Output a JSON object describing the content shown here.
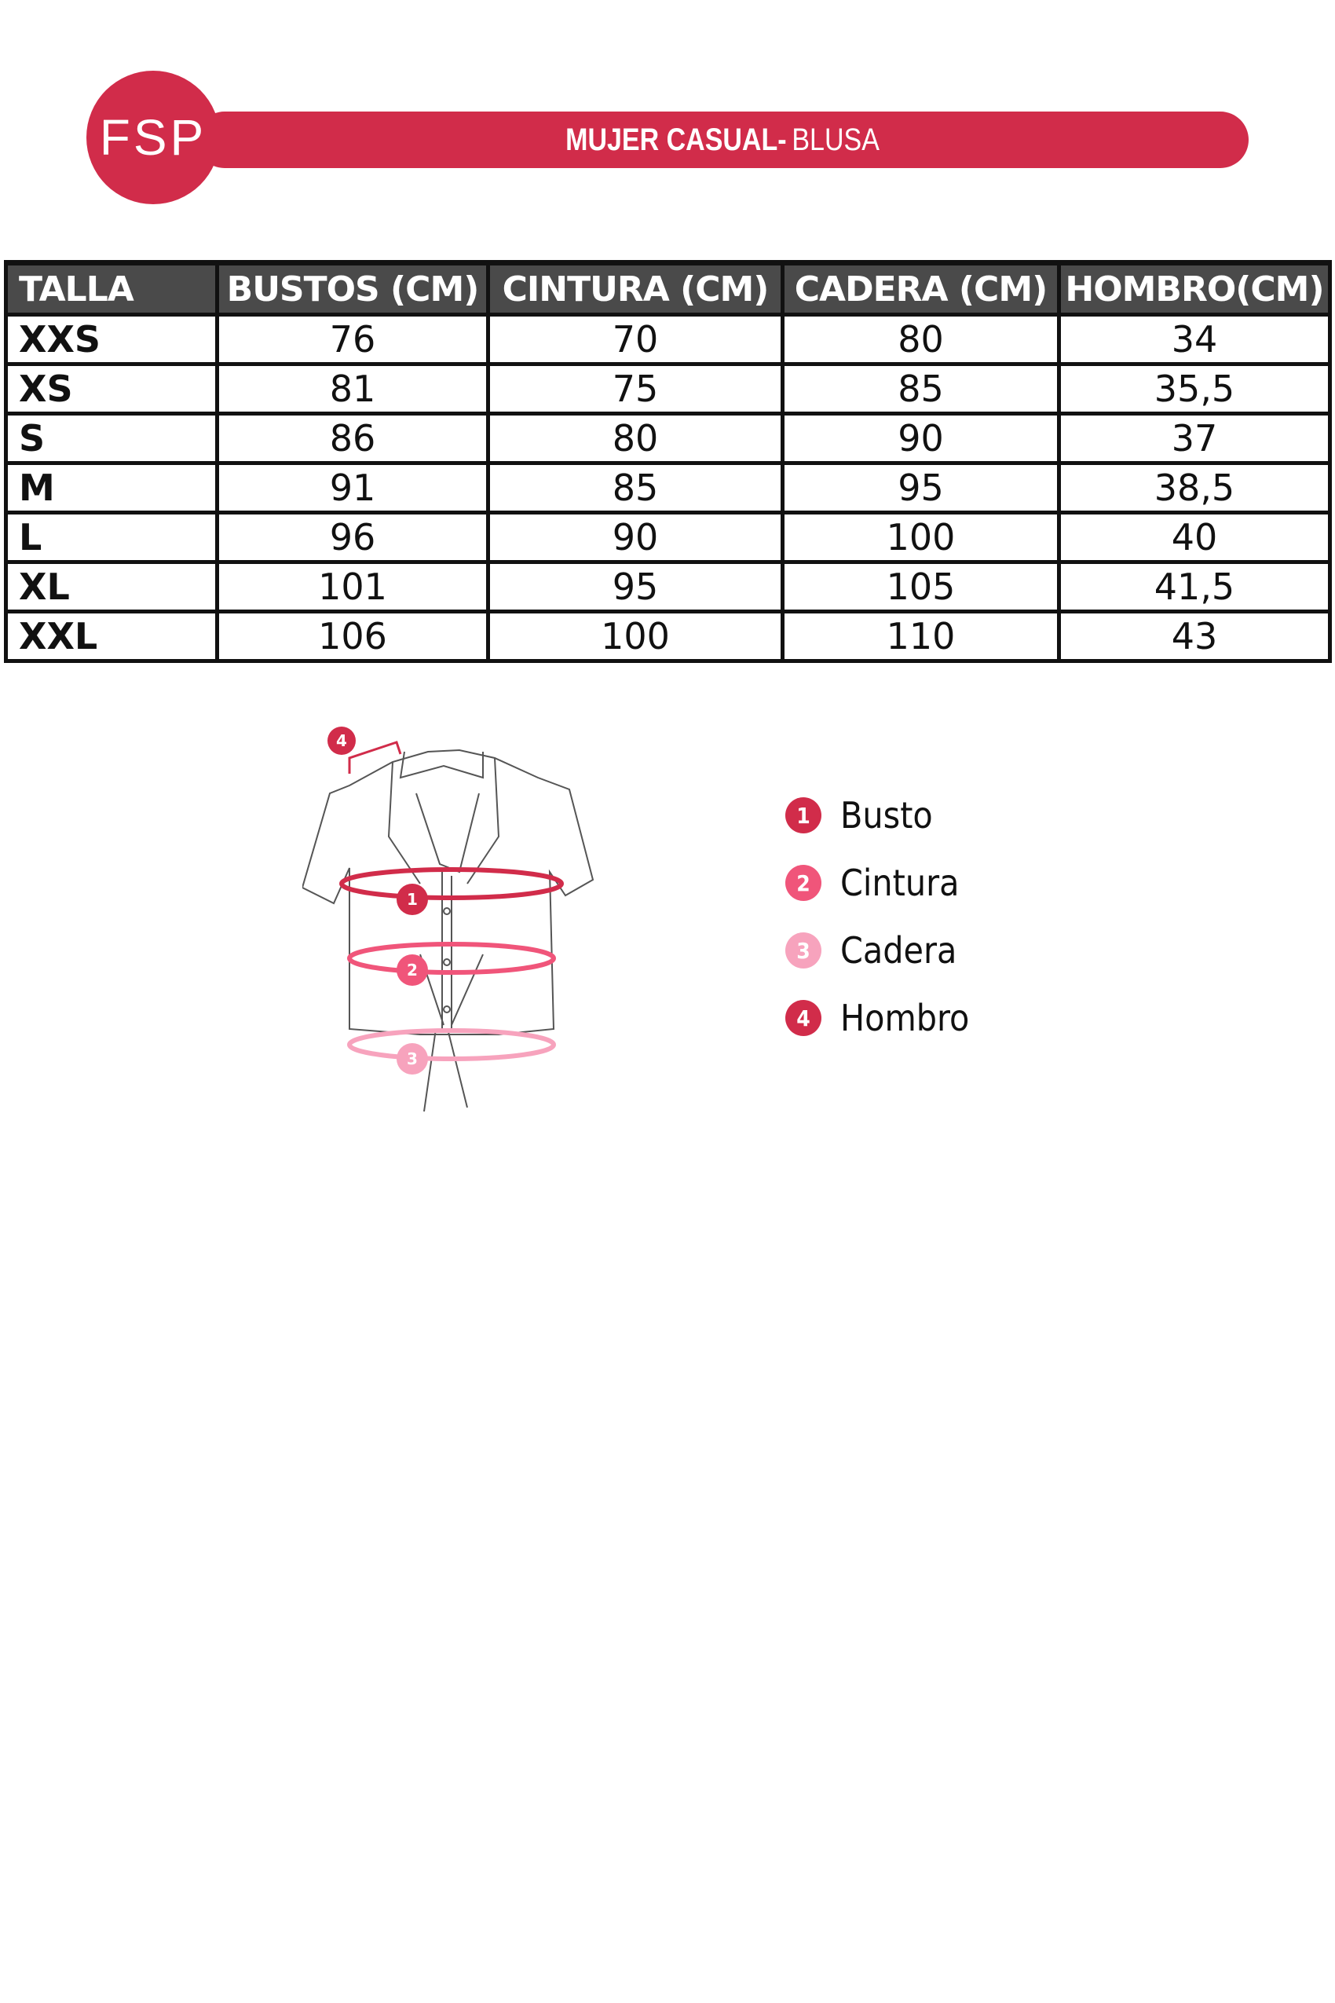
{
  "header": {
    "logo": "FSP",
    "title_bold": "MUJER CASUAL-",
    "title_light": "BLUSA",
    "color": "#d12c4a"
  },
  "table": {
    "columns": [
      "TALLA",
      "BUSTOS (CM)",
      "CINTURA (CM)",
      "CADERA (CM)",
      "HOMBRO(CM)"
    ],
    "rows": [
      [
        "XXS",
        "76",
        "70",
        "80",
        "34"
      ],
      [
        "XS",
        "81",
        "75",
        "85",
        "35,5"
      ],
      [
        "S",
        "86",
        "80",
        "90",
        "37"
      ],
      [
        "M",
        "91",
        "85",
        "95",
        "38,5"
      ],
      [
        "L",
        "96",
        "90",
        "100",
        "40"
      ],
      [
        "XL",
        "101",
        "95",
        "105",
        "41,5"
      ],
      [
        "XXL",
        "106",
        "100",
        "110",
        "43"
      ]
    ]
  },
  "legend": [
    {
      "n": "1",
      "label": "Busto",
      "color": "#d12c4a"
    },
    {
      "n": "2",
      "label": "Cintura",
      "color": "#f0557a"
    },
    {
      "n": "3",
      "label": "Cadera",
      "color": "#f7a3bd"
    },
    {
      "n": "4",
      "label": "Hombro",
      "color": "#d12c4a"
    }
  ]
}
